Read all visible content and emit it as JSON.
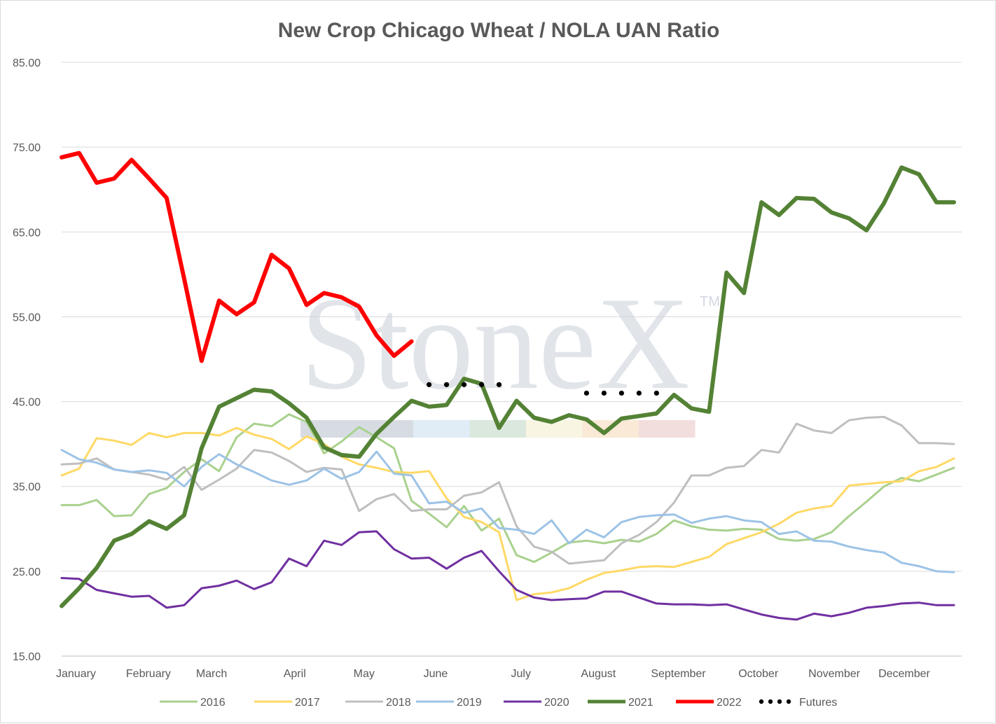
{
  "chart_data": {
    "type": "line",
    "title": "New Crop Chicago Wheat / NOLA UAN Ratio",
    "xlabel": "",
    "ylabel": "",
    "ylim": [
      15,
      85
    ],
    "yticks": [
      "85.00",
      "75.00",
      "65.00",
      "55.00",
      "45.00",
      "35.00",
      "25.00",
      "15.00"
    ],
    "xticks": [
      "January",
      "February",
      "March",
      "April",
      "May",
      "June",
      "July",
      "August",
      "September",
      "October",
      "November",
      "December"
    ],
    "grid": true,
    "legend_position": "bottom",
    "watermark": "StoneX",
    "watermark_tm": "TM",
    "series": [
      {
        "name": "2016",
        "color": "#a9d18e",
        "values": [
          32.8,
          32.8,
          33.4,
          31.5,
          31.6,
          34.1,
          34.8,
          36.7,
          38.2,
          36.8,
          40.8,
          42.4,
          42.1,
          43.5,
          42.6,
          38.9,
          40.3,
          42.0,
          40.8,
          39.5,
          33.3,
          31.8,
          30.2,
          32.7,
          29.8,
          31.2,
          26.9,
          26.1,
          27.2,
          28.4,
          28.6,
          28.3,
          28.7,
          28.5,
          29.4,
          31.0,
          30.3,
          29.9,
          29.8,
          30.0,
          29.9,
          28.8,
          28.6,
          28.8,
          29.6,
          31.5,
          33.2,
          35.0,
          36.0,
          35.6,
          36.4,
          37.2
        ]
      },
      {
        "name": "2017",
        "color": "#ffd966",
        "values": [
          36.3,
          37.1,
          40.7,
          40.4,
          39.9,
          41.3,
          40.8,
          41.3,
          41.3,
          41.0,
          41.9,
          41.1,
          40.6,
          39.4,
          40.9,
          40.0,
          38.5,
          37.6,
          37.2,
          36.7,
          36.6,
          36.8,
          33.6,
          31.4,
          30.8,
          29.6,
          21.6,
          22.3,
          22.5,
          23.0,
          24.0,
          24.8,
          25.1,
          25.5,
          25.6,
          25.5,
          26.1,
          26.7,
          28.2,
          28.9,
          29.6,
          30.6,
          31.9,
          32.4,
          32.7,
          35.1,
          35.3,
          35.5,
          35.6,
          36.8,
          37.3,
          38.3
        ]
      },
      {
        "name": "2018",
        "color": "#bfbfbf",
        "values": [
          37.6,
          37.7,
          38.3,
          37.0,
          36.7,
          36.4,
          35.8,
          37.3,
          34.6,
          35.8,
          37.1,
          39.3,
          39.0,
          38.0,
          36.7,
          37.2,
          37.0,
          32.1,
          33.5,
          34.1,
          32.1,
          32.3,
          32.3,
          33.9,
          34.3,
          35.5,
          30.3,
          27.9,
          27.3,
          25.9,
          26.1,
          26.3,
          28.3,
          29.3,
          30.8,
          33.1,
          36.3,
          36.3,
          37.2,
          37.4,
          39.3,
          39.0,
          42.4,
          41.6,
          41.3,
          42.8,
          43.1,
          43.2,
          42.2,
          40.1,
          40.1,
          40.0
        ]
      },
      {
        "name": "2019",
        "color": "#9dc3e6",
        "values": [
          39.3,
          38.2,
          37.8,
          37.0,
          36.7,
          36.9,
          36.6,
          35.0,
          37.3,
          38.8,
          37.6,
          36.7,
          35.7,
          35.2,
          35.7,
          37.1,
          35.9,
          36.7,
          39.1,
          36.5,
          36.3,
          33.0,
          33.2,
          31.9,
          32.4,
          30.1,
          29.9,
          29.4,
          31.0,
          28.3,
          29.9,
          29.0,
          30.8,
          31.4,
          31.6,
          31.7,
          30.7,
          31.2,
          31.5,
          31.0,
          30.8,
          29.4,
          29.7,
          28.6,
          28.5,
          27.9,
          27.5,
          27.2,
          26.0,
          25.6,
          25.0,
          24.9
        ]
      },
      {
        "name": "2020",
        "color": "#7030a0",
        "values": [
          24.2,
          24.1,
          22.8,
          22.4,
          22.0,
          22.1,
          20.7,
          21.0,
          23.0,
          23.3,
          23.9,
          22.9,
          23.7,
          26.5,
          25.6,
          28.6,
          28.1,
          29.6,
          29.7,
          27.6,
          26.5,
          26.6,
          25.3,
          26.6,
          27.4,
          25.0,
          22.8,
          21.9,
          21.6,
          21.7,
          21.8,
          22.6,
          22.6,
          21.9,
          21.2,
          21.1,
          21.1,
          21.0,
          21.1,
          20.5,
          19.9,
          19.5,
          19.3,
          20.0,
          19.7,
          20.1,
          20.7,
          20.9,
          21.2,
          21.3,
          21.0,
          21.0
        ]
      },
      {
        "name": "2021",
        "color": "#548235",
        "values": [
          20.9,
          23.0,
          25.4,
          28.6,
          29.4,
          30.9,
          30.0,
          31.6,
          39.5,
          44.4,
          45.4,
          46.4,
          46.2,
          44.8,
          43.1,
          39.6,
          38.7,
          38.5,
          41.2,
          43.2,
          45.1,
          44.4,
          44.6,
          47.7,
          47.1,
          41.9,
          45.1,
          43.1,
          42.6,
          43.4,
          42.9,
          41.3,
          43.0,
          43.3,
          43.6,
          45.8,
          44.2,
          43.8,
          60.2,
          57.8,
          68.5,
          67.0,
          69.0,
          68.9,
          67.3,
          66.6,
          65.2,
          68.4,
          72.6,
          71.8,
          68.5,
          68.5
        ]
      },
      {
        "name": "2022",
        "color": "#ff0000",
        "values": [
          73.8,
          74.3,
          70.8,
          71.3,
          73.5,
          71.3,
          69.0,
          59.5,
          49.8,
          56.9,
          55.3,
          56.7,
          62.3,
          60.7,
          56.4,
          57.8,
          57.3,
          56.2,
          52.8,
          50.4,
          52.1,
          null,
          null,
          null,
          null,
          null,
          null,
          null,
          null,
          null,
          null,
          null,
          null,
          null,
          null,
          null,
          null,
          null,
          null,
          null,
          null,
          null,
          null,
          null,
          null,
          null,
          null,
          null,
          null,
          null,
          null,
          null
        ]
      }
    ],
    "futures": {
      "name": "Futures",
      "color": "#000000",
      "points": [
        [
          21,
          47.0
        ],
        [
          22,
          47.0
        ],
        [
          23,
          47.0
        ],
        [
          24,
          47.0
        ],
        [
          25,
          47.0
        ],
        [
          30,
          46.0
        ],
        [
          31,
          46.0
        ],
        [
          32,
          46.0
        ],
        [
          33,
          46.0
        ],
        [
          34,
          46.0
        ]
      ]
    }
  }
}
